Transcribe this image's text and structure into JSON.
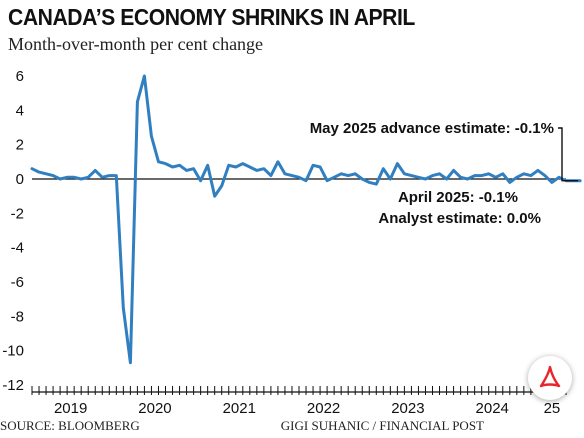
{
  "header": {
    "title": "CANADA’S ECONOMY SHRINKS IN APRIL",
    "subtitle": "Month-over-month per cent change"
  },
  "footer": {
    "source": "SOURCE: BLOOMBERG",
    "credit": "GIGI SUHANIC / FINANCIAL POST"
  },
  "annotations": {
    "may_advance": "May 2025 advance estimate: -0.1%",
    "april": "April 2025: -0.1%",
    "analyst": "Analyst estimate: 0.0%"
  },
  "badge": {
    "icon": "pdf-icon",
    "color": "#e8262b"
  },
  "chart_data": {
    "type": "line",
    "title": "CANADA’S ECONOMY SHRINKS IN APRIL",
    "subtitle": "Month-over-month per cent change",
    "ylim": [
      -12,
      6
    ],
    "yticks": [
      6,
      4,
      2,
      0,
      -2,
      -4,
      -6,
      -8,
      -10,
      -12
    ],
    "year_labels": [
      "2019",
      "2020",
      "2021",
      "2022",
      "2023",
      "2024",
      "25"
    ],
    "grid": false,
    "line_color": "#2f7fc1",
    "x_start": "2019-01",
    "x_end": "2025-05",
    "values": [
      0.6,
      0.4,
      0.3,
      0.2,
      0.0,
      0.1,
      0.1,
      0.0,
      0.1,
      0.5,
      0.1,
      0.2,
      0.2,
      -7.5,
      -10.7,
      4.5,
      6.0,
      2.5,
      1.0,
      0.9,
      0.7,
      0.8,
      0.5,
      0.6,
      -0.1,
      0.8,
      -1.0,
      -0.4,
      0.8,
      0.7,
      0.9,
      0.7,
      0.5,
      0.6,
      0.2,
      1.0,
      0.3,
      0.2,
      0.1,
      -0.1,
      0.8,
      0.7,
      -0.1,
      0.1,
      0.3,
      0.2,
      0.3,
      0.0,
      -0.2,
      -0.3,
      0.6,
      0.0,
      0.9,
      0.3,
      0.2,
      0.1,
      0.0,
      0.2,
      0.3,
      0.0,
      0.5,
      0.1,
      0.0,
      0.2,
      0.2,
      0.3,
      0.1,
      0.3,
      -0.2,
      0.1,
      0.3,
      0.2,
      0.5,
      0.2,
      -0.2,
      0.1,
      -0.1,
      -0.1,
      -0.1
    ]
  }
}
